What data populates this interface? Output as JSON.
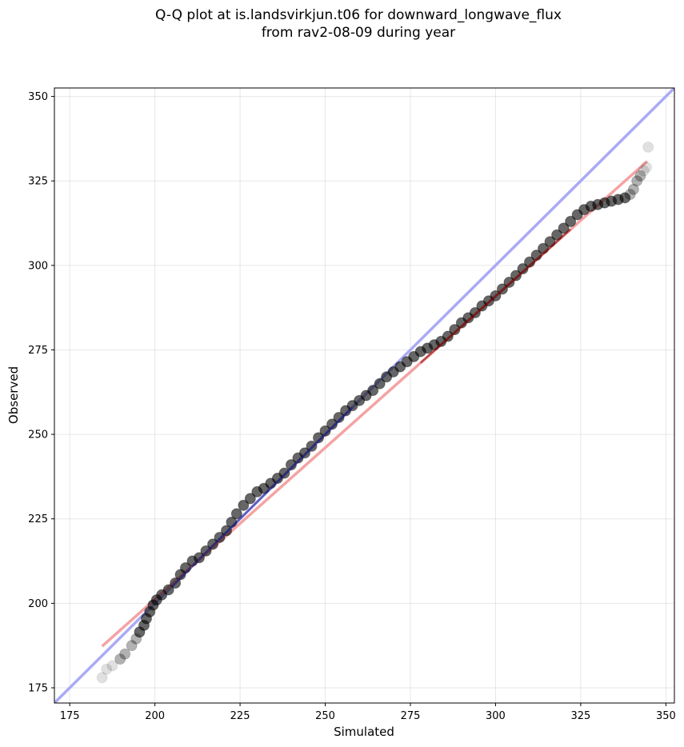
{
  "title_lines": [
    "Q-Q plot at is.landsvirkjun.t06 for downward_longwave_flux",
    "from rav2-08-09 during year"
  ],
  "chart_data": {
    "type": "scatter",
    "title": "Q-Q plot at is.landsvirkjun.t06 for downward_longwave_flux\nfrom rav2-08-09 during year",
    "xlabel": "Simulated",
    "ylabel": "Observed",
    "xlim": [
      170.5,
      352.5
    ],
    "ylim": [
      170.5,
      352.5
    ],
    "xticks": [
      175,
      200,
      225,
      250,
      275,
      300,
      325,
      350
    ],
    "yticks": [
      175,
      200,
      225,
      250,
      275,
      300,
      325,
      350
    ],
    "grid": true,
    "series": [
      {
        "kind": "reference_line",
        "color": "#aaaaf5",
        "x": [
          170.5,
          352.5
        ],
        "y": [
          170.5,
          352.5
        ]
      },
      {
        "kind": "fit_line",
        "color": "#f4a3a3",
        "x": [
          184.5,
          344.5
        ],
        "y": [
          187.3,
          330.8
        ]
      },
      {
        "kind": "quantiles",
        "color": "#000000",
        "x": [
          184.5,
          185.8,
          187.5,
          189.8,
          191.2,
          193.2,
          194.5,
          195.5,
          196.8,
          197.5,
          198.5,
          199.5,
          200.5,
          202,
          204,
          206,
          207.5,
          209,
          211,
          213,
          215,
          217,
          219,
          221,
          222.5,
          224,
          226,
          228,
          230,
          232,
          234,
          236,
          238,
          240,
          242,
          244,
          246,
          248,
          250,
          252,
          254,
          256,
          258,
          260,
          262,
          264,
          266,
          268,
          270,
          272,
          274,
          276,
          278,
          280,
          282,
          284,
          286,
          288,
          290,
          292,
          294,
          296,
          298,
          300,
          302,
          304,
          306,
          308,
          310,
          312,
          314,
          316,
          318,
          320,
          322,
          324,
          326,
          328,
          330,
          332,
          334,
          336,
          338,
          339.5,
          340.5,
          341.5,
          342.5,
          343.5,
          344.3,
          344.8
        ],
        "y": [
          178,
          180.5,
          181.5,
          183.5,
          185,
          187.5,
          189.5,
          191.5,
          193.5,
          195.5,
          197.5,
          199.5,
          201,
          202.5,
          204,
          206,
          208.5,
          210.5,
          212.5,
          213.5,
          215.5,
          217.5,
          219.5,
          221.5,
          224,
          226.5,
          229,
          231,
          233,
          234,
          235.5,
          237,
          238.5,
          241,
          243,
          244.5,
          246.5,
          249,
          251,
          253,
          255,
          257,
          258.5,
          260,
          261.5,
          263,
          265,
          267,
          268.5,
          270,
          271.5,
          273,
          274.5,
          275.5,
          276.5,
          277.5,
          279,
          281,
          283,
          284.5,
          286,
          288,
          289.5,
          291,
          293,
          295,
          297,
          299,
          301,
          303,
          305,
          307,
          309,
          311,
          313,
          315,
          316.5,
          317.5,
          318,
          318.5,
          319,
          319.5,
          320,
          321,
          322.5,
          325,
          326.5,
          328,
          329,
          335
        ]
      }
    ]
  }
}
